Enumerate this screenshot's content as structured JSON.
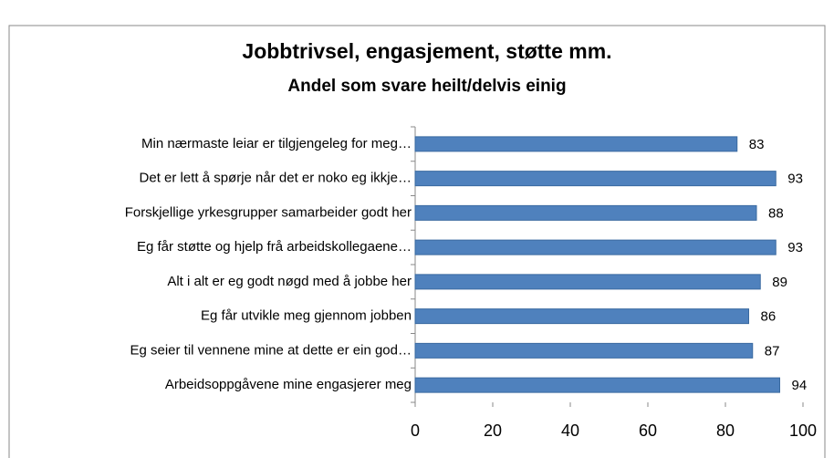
{
  "chart_data": {
    "type": "bar",
    "orientation": "horizontal",
    "title": "Jobbtrivsel, engasjement, støtte mm.",
    "subtitle": "Andel som svare heilt/delvis einig",
    "categories": [
      "Min nærmaste leiar er tilgjengeleg for meg…",
      "Det er lett å spørje når det er noko eg ikkje…",
      "Forskjellige yrkesgrupper samarbeider godt her",
      "Eg får støtte og hjelp frå arbeidskollegaene…",
      "Alt i alt er eg godt nøgd med å jobbe her",
      "Eg får utvikle meg gjennom jobben",
      "Eg seier til vennene mine at dette er ein god…",
      "Arbeidsoppgåvene mine engasjerer meg"
    ],
    "values": [
      83,
      93,
      88,
      93,
      89,
      86,
      87,
      94
    ],
    "color": "#4f81bd",
    "xlim": [
      0,
      100
    ],
    "xticks": [
      0,
      20,
      40,
      60,
      80,
      100
    ],
    "grid": false
  }
}
